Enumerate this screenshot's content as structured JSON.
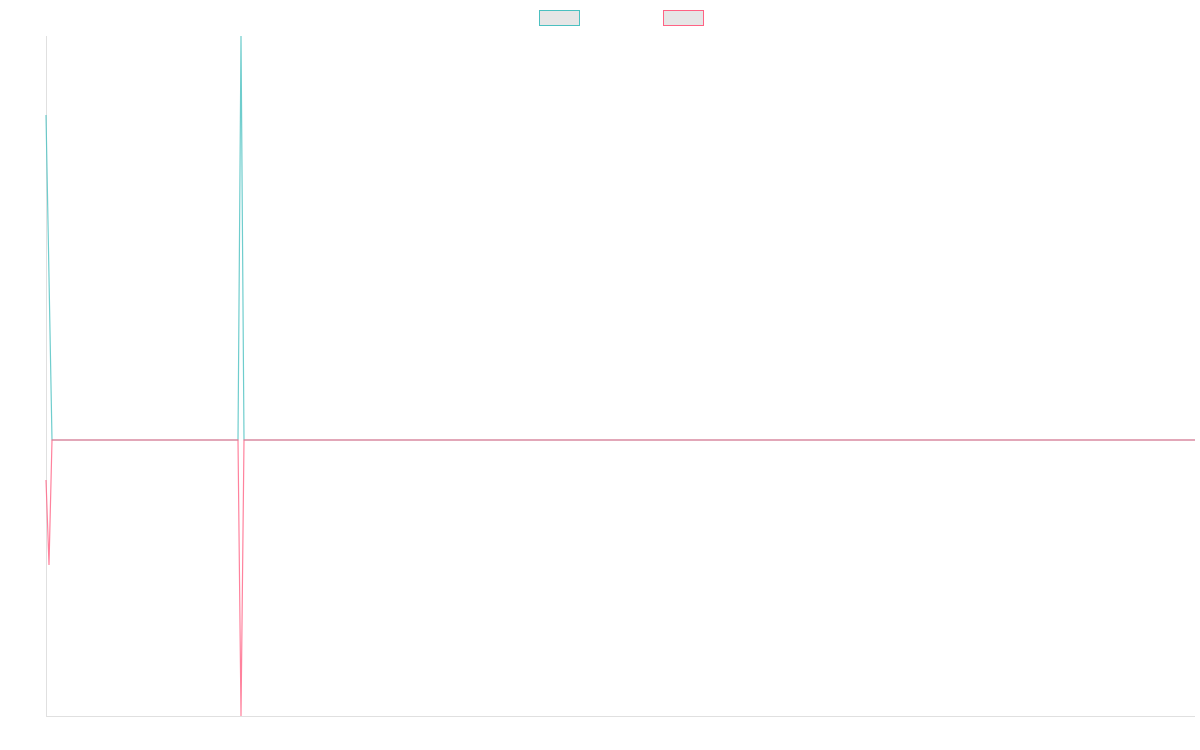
{
  "chart_data": {
    "type": "line",
    "x": [
      0,
      1,
      2,
      64,
      65,
      66,
      383
    ],
    "xlim": [
      0,
      383
    ],
    "ylim": [
      -276,
      404
    ],
    "series": [
      {
        "color": "#4bc0c0",
        "values": [
          325,
          163,
          0,
          0,
          404,
          0,
          0
        ]
      },
      {
        "color": "#ff6384",
        "values": [
          -40,
          -125,
          0,
          0,
          -276,
          0,
          0
        ]
      }
    ],
    "legend": "top"
  }
}
